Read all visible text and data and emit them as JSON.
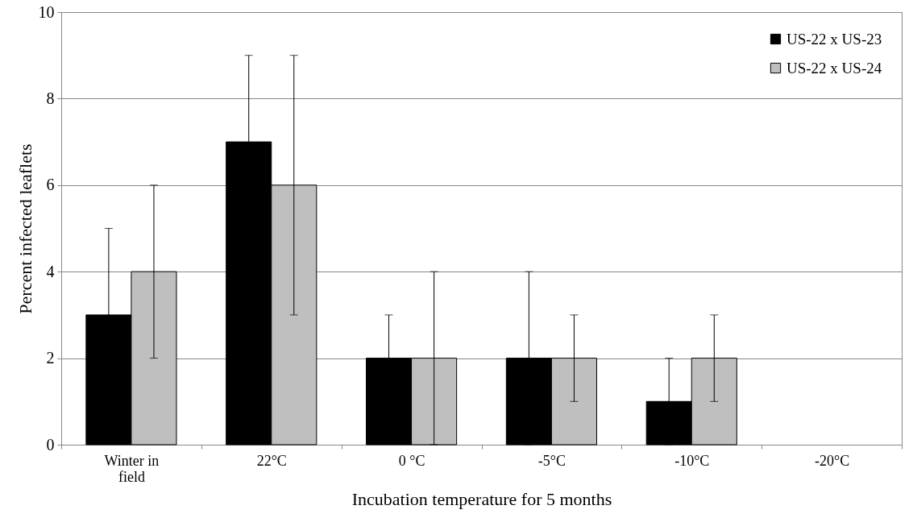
{
  "chart_data": {
    "type": "bar",
    "xlabel": "Incubation temperature for 5 months",
    "ylabel": "Percent  infected leaflets",
    "categories": [
      "Winter in field",
      "22°C",
      "0 °C",
      "-5°C",
      "-10°C",
      "-20°C"
    ],
    "series": [
      {
        "name": "US-22 x US-23",
        "color": "#000000",
        "values": [
          3,
          7,
          2,
          2,
          1,
          0
        ],
        "errors": [
          2,
          2,
          1,
          2,
          1,
          null
        ]
      },
      {
        "name": "US-22 x US-24",
        "color": "#bfbfbf",
        "values": [
          4,
          6,
          2,
          2,
          2,
          0
        ],
        "errors": [
          2,
          3,
          2,
          1,
          1,
          null
        ]
      }
    ],
    "ylim": [
      0,
      10
    ],
    "yticks": [
      0,
      2,
      4,
      6,
      8,
      10
    ],
    "grid": "y",
    "legend": "top right"
  }
}
